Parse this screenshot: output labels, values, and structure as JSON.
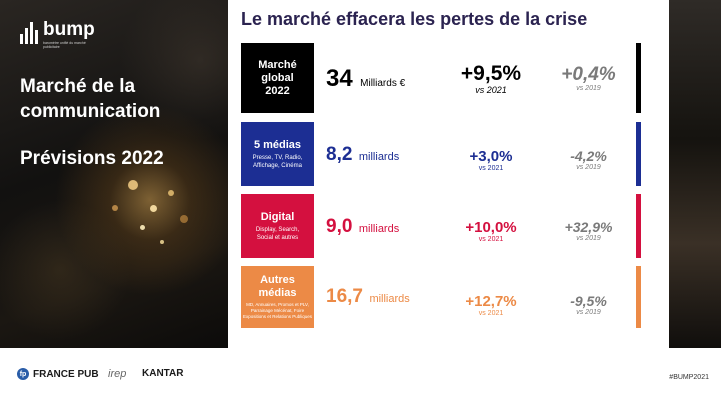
{
  "brand": {
    "logo_text": "bump",
    "logo_tagline": "baromètre unifié du marché publicitaire"
  },
  "left": {
    "title": "Marché de la communication",
    "subtitle": "Prévisions 2022"
  },
  "main": {
    "title": "Le marché effacera les pertes de la crise"
  },
  "rows": [
    {
      "box_title": "Marché global 2022",
      "box_sub": "",
      "value": "34",
      "unit": "Milliards €",
      "growth": "+9,5%",
      "growth_vs": "vs 2021",
      "change": "+0,4%",
      "change_vs": "vs 2019",
      "color": "#000000"
    },
    {
      "box_title": "5 médias",
      "box_sub": "Presse, TV, Radio, Affichage, Cinéma",
      "value": "8,2",
      "unit": "milliards",
      "growth": "+3,0%",
      "growth_vs": "vs 2021",
      "change": "-4,2%",
      "change_vs": "vs 2019",
      "color": "#1c2e93"
    },
    {
      "box_title": "Digital",
      "box_sub": "Display, Search, Social et autres",
      "value": "9,0",
      "unit": "milliards",
      "growth": "+10,0%",
      "growth_vs": "vs 2021",
      "change": "+32,9%",
      "change_vs": "vs 2019",
      "color": "#d4103f"
    },
    {
      "box_title": "Autres médias",
      "box_sub": "MD, Annuaires, Promos et PLV, Parrainage Mécénat, Foire Expositions et Relations Publiques",
      "value": "16,7",
      "unit": "milliards",
      "growth": "+12,7%",
      "growth_vs": "vs 2021",
      "change": "-9,5%",
      "change_vs": "vs 2019",
      "color": "#ec8a46"
    }
  ],
  "footer": {
    "logo_francepub": "FRANCE PUB",
    "logo_irep": "irep",
    "logo_kantar": "KANTAR",
    "hashtag": "#BUMP2021"
  }
}
